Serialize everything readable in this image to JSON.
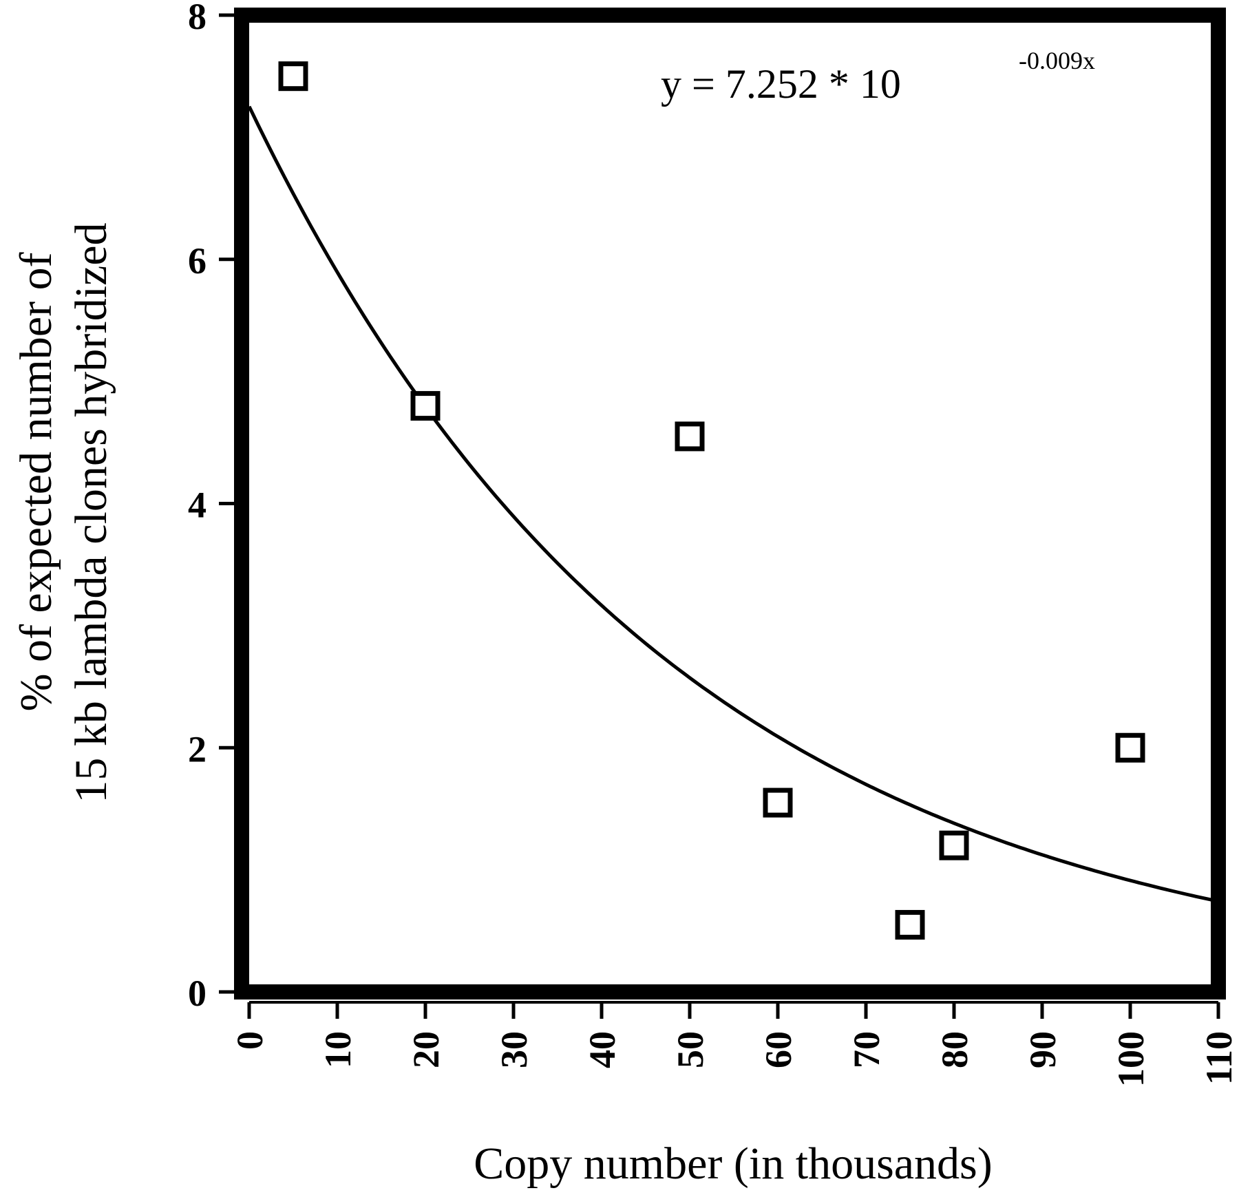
{
  "chart_data": {
    "type": "scatter",
    "title": "",
    "xlabel": "Copy number (in thousands)",
    "ylabel_lines": [
      "% of expected number of",
      "15 kb  lambda clones hybridized"
    ],
    "xlim": [
      0,
      110
    ],
    "ylim": [
      0,
      8
    ],
    "x_ticks": [
      0,
      10,
      20,
      30,
      40,
      50,
      60,
      70,
      80,
      90,
      100,
      110
    ],
    "y_ticks": [
      0,
      2,
      4,
      6,
      8
    ],
    "grid": false,
    "legend": "none",
    "marker": "open-square",
    "series": [
      {
        "x": [
          5,
          20,
          50,
          60,
          75,
          80,
          100
        ],
        "y": [
          7.5,
          4.8,
          4.55,
          1.55,
          0.55,
          1.2,
          2.0
        ]
      }
    ],
    "fit": {
      "type": "exponential",
      "a": 7.252,
      "base": 10,
      "k": -0.009,
      "equation_text": "y = 7.252 * 10",
      "equation_exponent": "-0.009x"
    }
  }
}
